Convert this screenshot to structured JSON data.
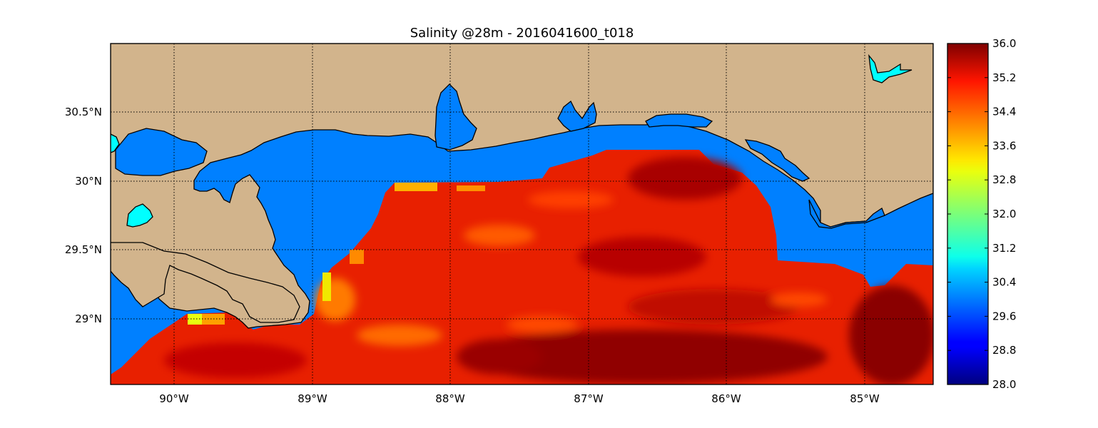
{
  "title": "Salinity @28m - 2016041600_t018",
  "map": {
    "lon_range": [
      -90.5,
      -84.5
    ],
    "lat_range": [
      28.55,
      31.0
    ],
    "lon_ticks": [
      {
        "value": -90,
        "label": "90°W"
      },
      {
        "value": -89,
        "label": "89°W"
      },
      {
        "value": -88,
        "label": "88°W"
      },
      {
        "value": -87,
        "label": "87°W"
      },
      {
        "value": -86,
        "label": "86°W"
      },
      {
        "value": -85,
        "label": "85°W"
      }
    ],
    "lat_ticks": [
      {
        "value": 30.5,
        "label": "30.5°N"
      },
      {
        "value": 30.0,
        "label": "30°N"
      },
      {
        "value": 29.5,
        "label": "29.5°N"
      },
      {
        "value": 29.0,
        "label": "29°N"
      }
    ],
    "gridlines": "dotted",
    "colors": {
      "land": "#d2b48c",
      "ocean": "#0080ff",
      "lakes": "#00ffff",
      "coastline": "#000000"
    }
  },
  "colorbar": {
    "colormap": "jet",
    "range": [
      28.0,
      36.0
    ],
    "ticks": [
      "36.0",
      "35.2",
      "34.4",
      "33.6",
      "32.8",
      "32.0",
      "31.2",
      "30.4",
      "29.6",
      "28.8",
      "28.0"
    ]
  }
}
